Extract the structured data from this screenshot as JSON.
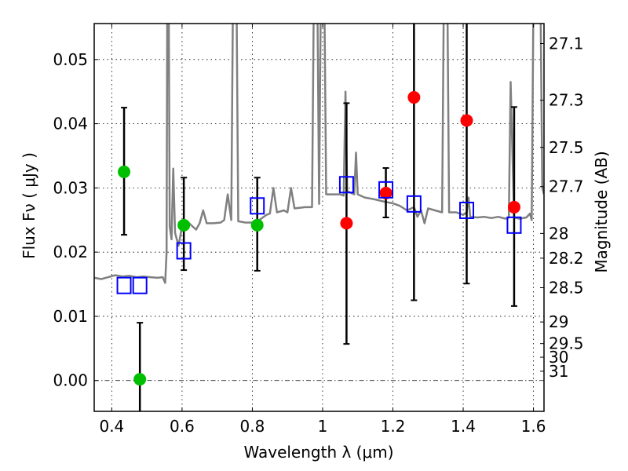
{
  "chart_data": {
    "type": "scatter",
    "title": "",
    "xlabel": "Wavelength  λ (μm)",
    "ylabel": "Flux  Fν  ( μJy )",
    "ylabel_right": "Magnitude (AB)",
    "xlim": [
      0.35,
      1.63
    ],
    "ylim": [
      -0.0048,
      0.0556
    ],
    "grid": true,
    "x_ticks": [
      {
        "value": 0.4,
        "label": "0.4"
      },
      {
        "value": 0.6,
        "label": "0.6"
      },
      {
        "value": 0.8,
        "label": "0.8"
      },
      {
        "value": 1.0,
        "label": "1"
      },
      {
        "value": 1.2,
        "label": "1.2"
      },
      {
        "value": 1.4,
        "label": "1.4"
      },
      {
        "value": 1.6,
        "label": "1.6"
      }
    ],
    "y_ticks": [
      {
        "value": 0.0,
        "label": "0.00"
      },
      {
        "value": 0.01,
        "label": "0.01"
      },
      {
        "value": 0.02,
        "label": "0.02"
      },
      {
        "value": 0.03,
        "label": "0.03"
      },
      {
        "value": 0.04,
        "label": "0.04"
      },
      {
        "value": 0.05,
        "label": "0.05"
      }
    ],
    "right_ticks": [
      {
        "mag": 27.1,
        "label": "27.1"
      },
      {
        "mag": 27.3,
        "label": "27.3"
      },
      {
        "mag": 27.5,
        "label": "27.5"
      },
      {
        "mag": 27.7,
        "label": "27.7"
      },
      {
        "mag": 28,
        "label": "28"
      },
      {
        "mag": 28.2,
        "label": "28.2"
      },
      {
        "mag": 28.5,
        "label": "28.5"
      },
      {
        "mag": 29,
        "label": "29"
      },
      {
        "mag": 29.5,
        "label": "29.5"
      },
      {
        "mag": 30,
        "label": "30"
      },
      {
        "mag": 31,
        "label": "31"
      }
    ],
    "series": [
      {
        "name": "model-spectrum",
        "kind": "line",
        "color": "#808080",
        "points": [
          [
            0.35,
            0.016
          ],
          [
            0.37,
            0.0158
          ],
          [
            0.39,
            0.0161
          ],
          [
            0.41,
            0.0164
          ],
          [
            0.43,
            0.0162
          ],
          [
            0.45,
            0.0163
          ],
          [
            0.47,
            0.0161
          ],
          [
            0.49,
            0.0162
          ],
          [
            0.51,
            0.0161
          ],
          [
            0.53,
            0.016
          ],
          [
            0.545,
            0.0161
          ],
          [
            0.552,
            0.0152
          ],
          [
            0.556,
            0.02
          ],
          [
            0.558,
            0.06
          ],
          [
            0.562,
            0.06
          ],
          [
            0.565,
            0.024
          ],
          [
            0.57,
            0.022
          ],
          [
            0.575,
            0.033
          ],
          [
            0.58,
            0.023
          ],
          [
            0.59,
            0.021
          ],
          [
            0.6,
            0.024
          ],
          [
            0.62,
            0.0245
          ],
          [
            0.64,
            0.0235
          ],
          [
            0.65,
            0.0245
          ],
          [
            0.66,
            0.0265
          ],
          [
            0.67,
            0.0245
          ],
          [
            0.69,
            0.0245
          ],
          [
            0.71,
            0.0246
          ],
          [
            0.72,
            0.025
          ],
          [
            0.73,
            0.029
          ],
          [
            0.74,
            0.025
          ],
          [
            0.745,
            0.06
          ],
          [
            0.755,
            0.06
          ],
          [
            0.76,
            0.0248
          ],
          [
            0.78,
            0.0246
          ],
          [
            0.8,
            0.0246
          ],
          [
            0.82,
            0.025
          ],
          [
            0.84,
            0.0258
          ],
          [
            0.85,
            0.026
          ],
          [
            0.86,
            0.03
          ],
          [
            0.87,
            0.0262
          ],
          [
            0.89,
            0.0265
          ],
          [
            0.9,
            0.0262
          ],
          [
            0.91,
            0.03
          ],
          [
            0.92,
            0.0268
          ],
          [
            0.95,
            0.027
          ],
          [
            0.97,
            0.027
          ],
          [
            0.975,
            0.06
          ],
          [
            0.985,
            0.06
          ],
          [
            0.99,
            0.0275
          ],
          [
            0.995,
            0.06
          ],
          [
            1.005,
            0.06
          ],
          [
            1.01,
            0.029
          ],
          [
            1.05,
            0.029
          ],
          [
            1.06,
            0.0288
          ],
          [
            1.065,
            0.045
          ],
          [
            1.07,
            0.0295
          ],
          [
            1.09,
            0.029
          ],
          [
            1.095,
            0.0355
          ],
          [
            1.1,
            0.029
          ],
          [
            1.12,
            0.0285
          ],
          [
            1.15,
            0.0282
          ],
          [
            1.18,
            0.0278
          ],
          [
            1.2,
            0.0276
          ],
          [
            1.22,
            0.0272
          ],
          [
            1.24,
            0.0265
          ],
          [
            1.26,
            0.027
          ],
          [
            1.27,
            0.0255
          ],
          [
            1.28,
            0.0265
          ],
          [
            1.29,
            0.0245
          ],
          [
            1.3,
            0.0268
          ],
          [
            1.32,
            0.0265
          ],
          [
            1.34,
            0.0262
          ],
          [
            1.345,
            0.06
          ],
          [
            1.355,
            0.06
          ],
          [
            1.36,
            0.0262
          ],
          [
            1.38,
            0.0262
          ],
          [
            1.4,
            0.0258
          ],
          [
            1.41,
            0.0262
          ],
          [
            1.415,
            0.0285
          ],
          [
            1.42,
            0.0255
          ],
          [
            1.44,
            0.0254
          ],
          [
            1.46,
            0.0255
          ],
          [
            1.48,
            0.0253
          ],
          [
            1.5,
            0.0255
          ],
          [
            1.52,
            0.0252
          ],
          [
            1.53,
            0.0254
          ],
          [
            1.535,
            0.0465
          ],
          [
            1.545,
            0.0254
          ],
          [
            1.56,
            0.0252
          ],
          [
            1.58,
            0.0254
          ],
          [
            1.59,
            0.026
          ],
          [
            1.595,
            0.025
          ],
          [
            1.6,
            0.06
          ],
          [
            1.62,
            0.06
          ],
          [
            1.625,
            0.03
          ],
          [
            1.63,
            0.029
          ]
        ]
      },
      {
        "name": "green-photometry",
        "kind": "points",
        "marker": "circle",
        "color": "#00bf00",
        "points": [
          {
            "x": 0.435,
            "y": 0.0325,
            "err_lo": 0.0227,
            "err_hi": 0.0425
          },
          {
            "x": 0.48,
            "y": 0.0002,
            "err_lo": -0.006,
            "err_hi": 0.009
          },
          {
            "x": 0.605,
            "y": 0.0242,
            "err_lo": 0.0172,
            "err_hi": 0.0316
          },
          {
            "x": 0.814,
            "y": 0.0242,
            "err_lo": 0.0171,
            "err_hi": 0.0316
          }
        ]
      },
      {
        "name": "red-photometry",
        "kind": "points",
        "marker": "circle",
        "color": "#ff0000",
        "points": [
          {
            "x": 1.068,
            "y": 0.0245,
            "err_lo": 0.0057,
            "err_hi": 0.0432
          },
          {
            "x": 1.18,
            "y": 0.0292,
            "err_lo": 0.0254,
            "err_hi": 0.0331
          },
          {
            "x": 1.26,
            "y": 0.0441,
            "err_lo": 0.0125,
            "err_hi": 0.06
          },
          {
            "x": 1.41,
            "y": 0.0405,
            "err_lo": 0.0151,
            "err_hi": 0.06
          },
          {
            "x": 1.545,
            "y": 0.027,
            "err_lo": 0.0116,
            "err_hi": 0.0426
          }
        ]
      },
      {
        "name": "model-bandpass",
        "kind": "points",
        "marker": "open-square",
        "color": "#0000ff",
        "points": [
          {
            "x": 0.435,
            "y": 0.0148
          },
          {
            "x": 0.48,
            "y": 0.0148
          },
          {
            "x": 0.605,
            "y": 0.0202
          },
          {
            "x": 0.814,
            "y": 0.0272
          },
          {
            "x": 1.068,
            "y": 0.0305
          },
          {
            "x": 1.18,
            "y": 0.0297
          },
          {
            "x": 1.26,
            "y": 0.0275
          },
          {
            "x": 1.41,
            "y": 0.0265
          },
          {
            "x": 1.545,
            "y": 0.0242
          }
        ]
      }
    ]
  }
}
